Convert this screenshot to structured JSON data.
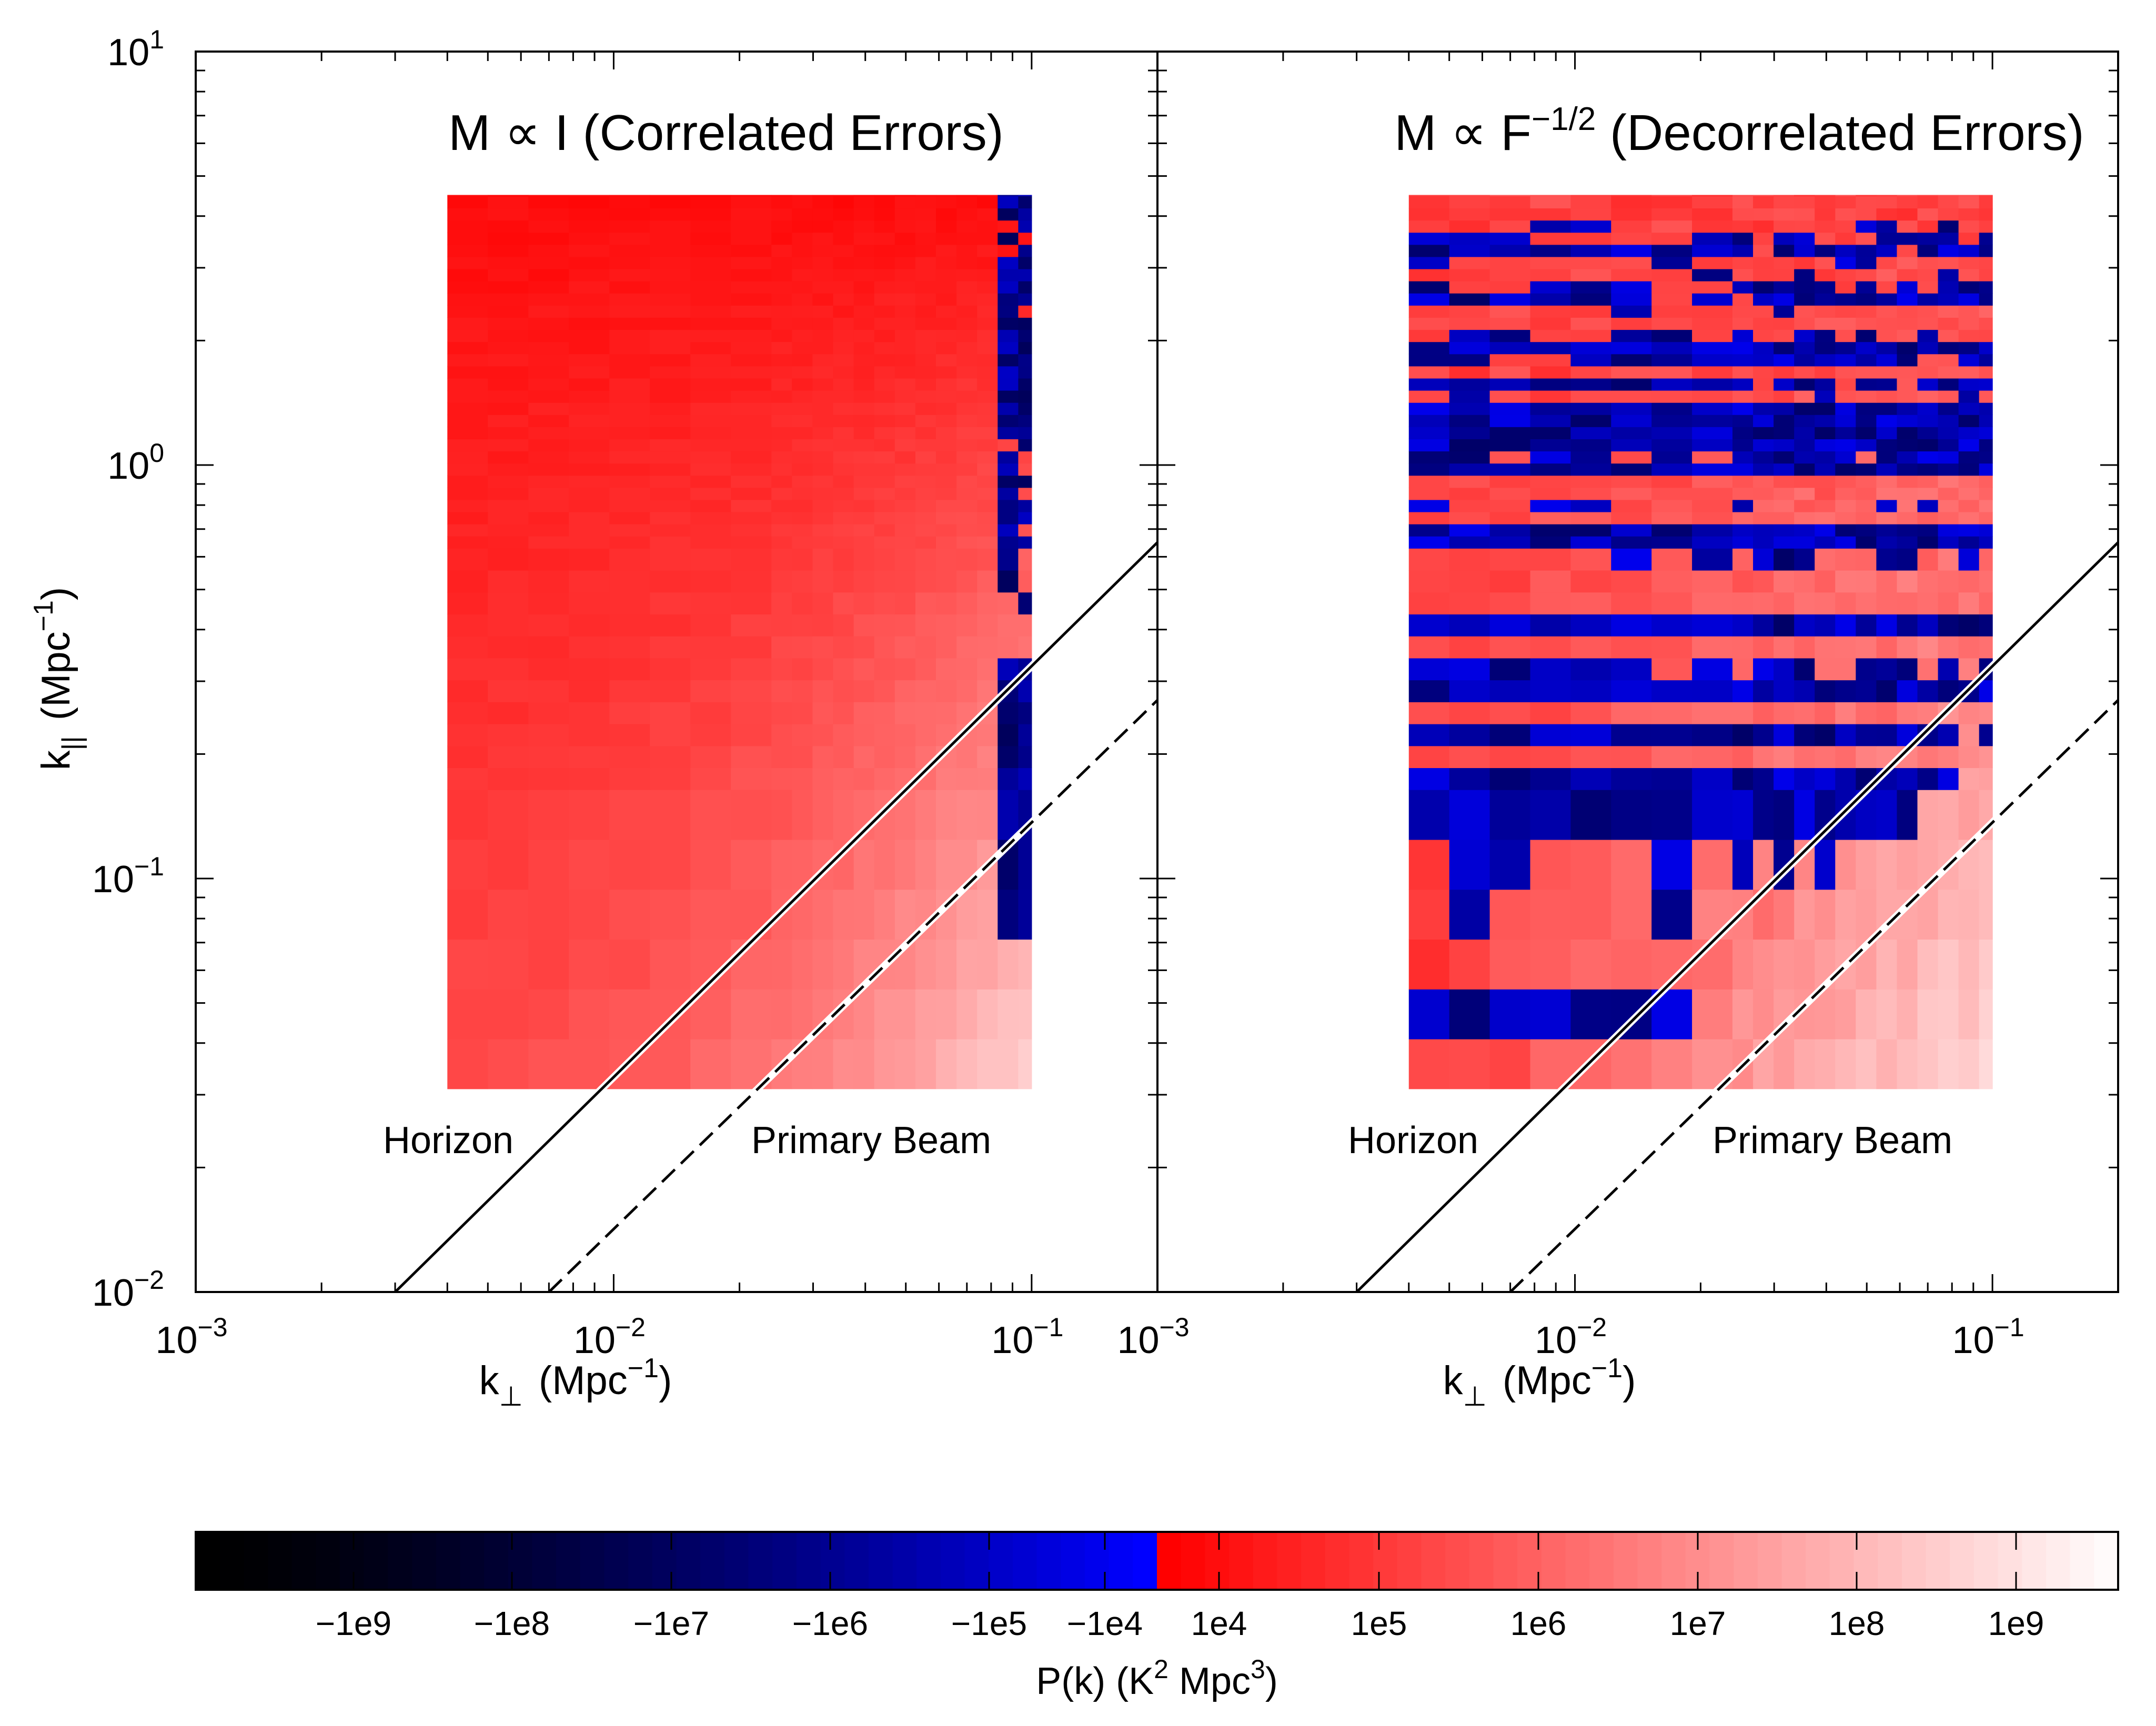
{
  "colors": {
    "axis": "#000000",
    "negative_min": "#000000",
    "negative_max": "#0000ff",
    "positive_min": "#ff0000",
    "positive_max": "#ffffff"
  },
  "shared_axes": {
    "x_label_main": "k",
    "x_label_sub": "⊥",
    "x_label_unit": "(Mpc",
    "x_label_exp": "−1",
    "x_label_close": ")",
    "y_label_main": "k",
    "y_label_sub": "||",
    "y_label_unit": "(Mpc",
    "y_label_exp": "−1",
    "y_label_close": ")",
    "x_tick_labels": [
      {
        "base": "10",
        "exp": "−3",
        "value": 0.001
      },
      {
        "base": "10",
        "exp": "−2",
        "value": 0.01
      },
      {
        "base": "10",
        "exp": "−1",
        "value": 0.1
      }
    ],
    "y_tick_labels": [
      {
        "base": "10",
        "exp": "−2",
        "value": 0.01
      },
      {
        "base": "10",
        "exp": "−1",
        "value": 0.1
      },
      {
        "base": "10",
        "exp": "0",
        "value": 1
      },
      {
        "base": "10",
        "exp": "1",
        "value": 10
      }
    ]
  },
  "panels": {
    "left": {
      "title_prefix": "M ∝ I",
      "title_suffix": " (Correlated Errors)",
      "horizon_label": "Horizon",
      "beam_label": "Primary Beam"
    },
    "right": {
      "title_prefix": "M ∝ F",
      "title_exp": "−1/2",
      "title_suffix": " (Decorrelated Errors)",
      "horizon_label": "Horizon",
      "beam_label": "Primary Beam"
    }
  },
  "colorbar": {
    "label_main": "P(k)  (K",
    "label_exp1": "2",
    "label_mid": " Mpc",
    "label_exp2": "3",
    "label_close": ")",
    "ticks": [
      "−1e9",
      "−1e8",
      "−1e7",
      "−1e6",
      "−1e5",
      "−1e4",
      "1e4",
      "1e5",
      "1e6",
      "1e7",
      "1e8",
      "1e9"
    ]
  },
  "chart_data": [
    {
      "type": "heatmap",
      "panel": "left",
      "title": "M ∝ I (Correlated Errors)",
      "xlabel": "k⊥ (Mpc−1)",
      "ylabel": "k|| (Mpc−1)",
      "xscale": "log",
      "yscale": "log",
      "xlim": [
        0.001,
        0.2
      ],
      "ylim": [
        0.01,
        10
      ],
      "data_extent": {
        "kperp": [
          0.004,
          0.1
        ],
        "kpar": [
          0.031,
          4.5
        ]
      },
      "pattern": "mostly positive P(k) ~1e4–1e6 (red); values whiten toward high k⊥ and low k||; strongly negative columns/rows (blue to navy) at k⊥ ≳ 0.08 Mpc−1",
      "horizon_line": {
        "style": "solid",
        "points": [
          [
            0.003,
            0.01
          ],
          [
            0.2,
            0.65
          ]
        ]
      },
      "primary_beam_line": {
        "style": "dashed",
        "points": [
          [
            0.007,
            0.01
          ],
          [
            0.2,
            0.27
          ]
        ]
      }
    },
    {
      "type": "heatmap",
      "panel": "right",
      "title": "M ∝ F−1/2 (Decorrelated Errors)",
      "xlabel": "k⊥ (Mpc−1)",
      "xscale": "log",
      "yscale": "log",
      "xlim": [
        0.001,
        0.2
      ],
      "ylim": [
        0.01,
        10
      ],
      "data_extent": {
        "kperp": [
          0.004,
          0.1
        ],
        "kpar": [
          0.031,
          4.5
        ]
      },
      "pattern": "alternating positive (red) and negative (blue) rows above the horizon line; mostly positive (light red to white) below it; negative block at lowest k⊥ and k|| < 0.1",
      "horizon_line": {
        "style": "solid",
        "points": [
          [
            0.003,
            0.01
          ],
          [
            0.2,
            0.65
          ]
        ]
      },
      "primary_beam_line": {
        "style": "dashed",
        "points": [
          [
            0.007,
            0.01
          ],
          [
            0.2,
            0.27
          ]
        ]
      }
    }
  ]
}
